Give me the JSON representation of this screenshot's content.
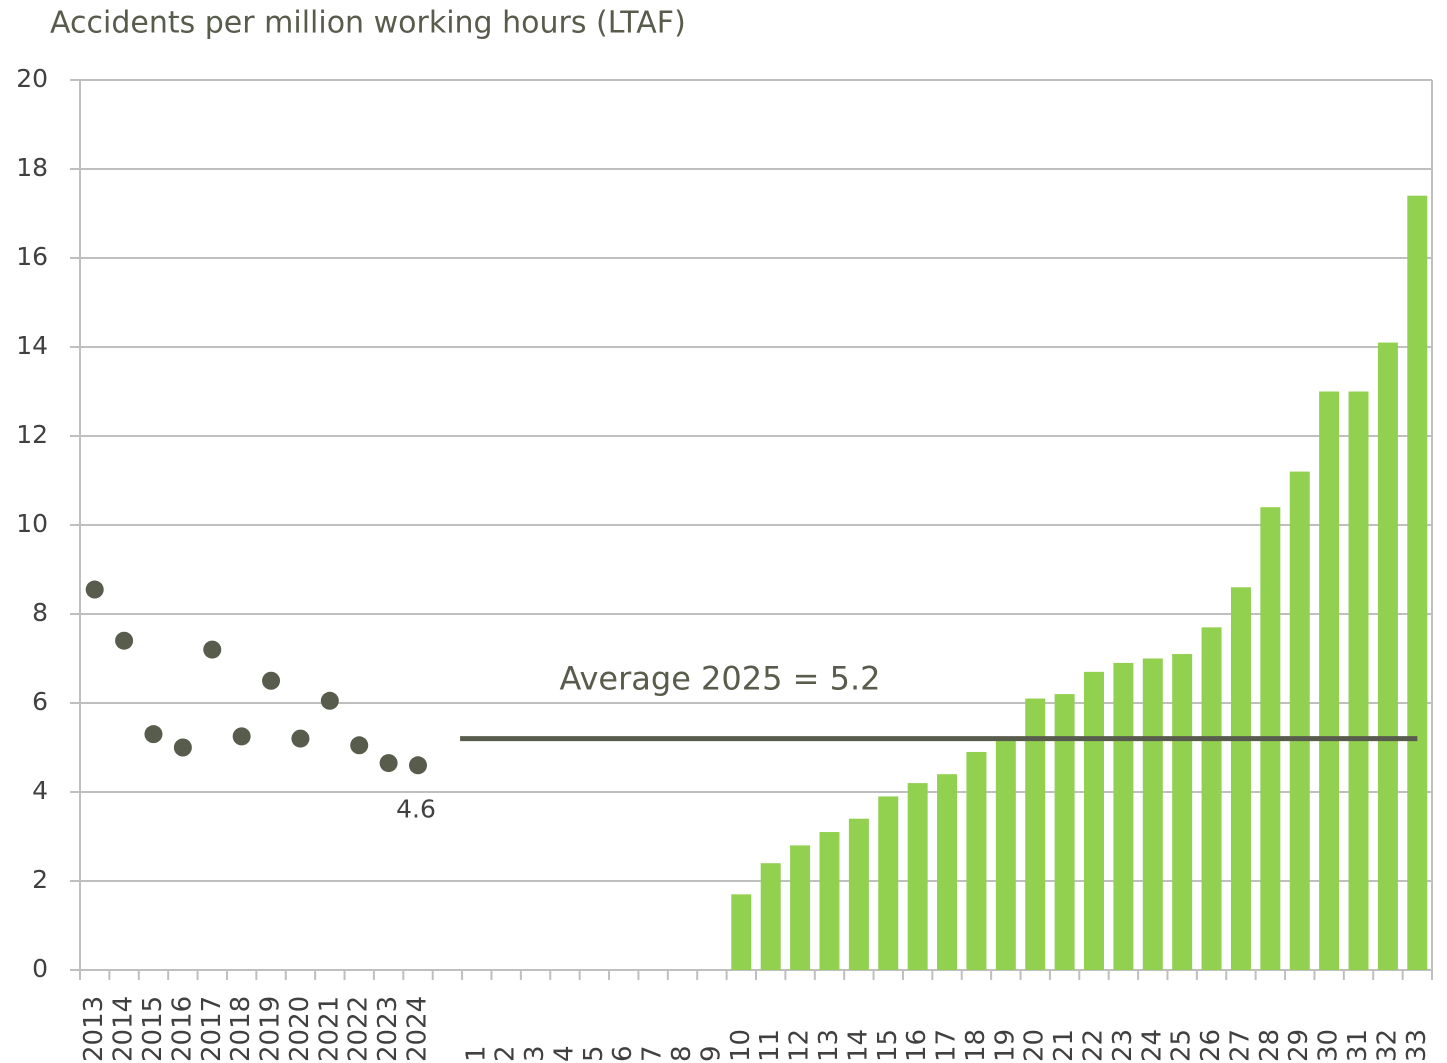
{
  "chart_data": {
    "type": "bar",
    "title": "Accidents per million working hours (LTAF)",
    "categories": [
      "2013",
      "2014",
      "2015",
      "2016",
      "2017",
      "2018",
      "2019",
      "2020",
      "2021",
      "2022",
      "2023",
      "2024",
      null,
      "1",
      "2",
      "3",
      "4",
      "5",
      "6",
      "7",
      "8",
      "9",
      "10",
      "11",
      "12",
      "13",
      "14",
      "15",
      "16",
      "17",
      "18",
      "19",
      "20",
      "21",
      "22",
      "23",
      "24",
      "25",
      "26",
      "27",
      "28",
      "29",
      "30",
      "31",
      "32",
      "33"
    ],
    "series": [
      {
        "type": "scatter",
        "color": "#585c4c",
        "values": [
          8.55,
          7.4,
          5.3,
          5.0,
          7.2,
          5.25,
          6.5,
          5.2,
          6.05,
          5.05,
          4.65,
          4.6,
          null,
          null,
          null,
          null,
          null,
          null,
          null,
          null,
          null,
          null,
          null,
          null,
          null,
          null,
          null,
          null,
          null,
          null,
          null,
          null,
          null,
          null,
          null,
          null,
          null,
          null,
          null,
          null,
          null,
          null,
          null,
          null,
          null,
          null
        ],
        "value_labels": [
          null,
          null,
          null,
          null,
          null,
          null,
          null,
          null,
          null,
          null,
          null,
          "4.6",
          null,
          null,
          null,
          null,
          null,
          null,
          null,
          null,
          null,
          null,
          null,
          null,
          null,
          null,
          null,
          null,
          null,
          null,
          null,
          null,
          null,
          null,
          null,
          null,
          null,
          null,
          null,
          null,
          null,
          null,
          null,
          null,
          null,
          null
        ]
      },
      {
        "type": "bar",
        "color": "#92d050",
        "values": [
          null,
          null,
          null,
          null,
          null,
          null,
          null,
          null,
          null,
          null,
          null,
          null,
          null,
          0,
          0,
          0,
          0,
          0,
          0,
          0,
          0,
          0,
          1.7,
          2.4,
          2.8,
          3.1,
          3.4,
          3.9,
          4.2,
          4.4,
          4.9,
          5.2,
          6.1,
          6.2,
          6.7,
          6.9,
          7.0,
          7.1,
          7.7,
          8.6,
          10.4,
          11.2,
          13.0,
          13.0,
          14.1,
          17.4
        ]
      }
    ],
    "annotation": {
      "text": "Average 2025 = 5.2",
      "value": 5.2,
      "color": "#585c4c"
    },
    "ylim": [
      0,
      20
    ],
    "yticks": [
      0,
      2,
      4,
      6,
      8,
      10,
      12,
      14,
      16,
      18,
      20
    ],
    "grid": true
  }
}
